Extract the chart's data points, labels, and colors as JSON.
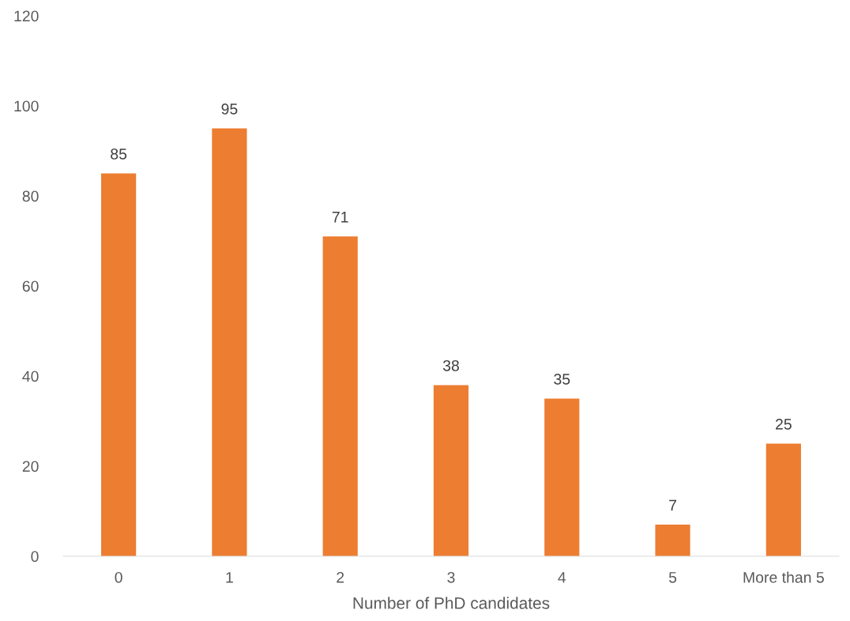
{
  "chart_data": {
    "type": "bar",
    "xlabel": "Number of PhD candidates",
    "categories": [
      "0",
      "1",
      "2",
      "3",
      "4",
      "5",
      "More than 5"
    ],
    "values": [
      85,
      95,
      71,
      38,
      35,
      7,
      25
    ],
    "color": "#ed7d31",
    "ylim": [
      0,
      120
    ],
    "yticks": [
      0,
      20,
      40,
      60,
      80,
      100,
      120
    ],
    "grid": false,
    "data_labels": true
  }
}
